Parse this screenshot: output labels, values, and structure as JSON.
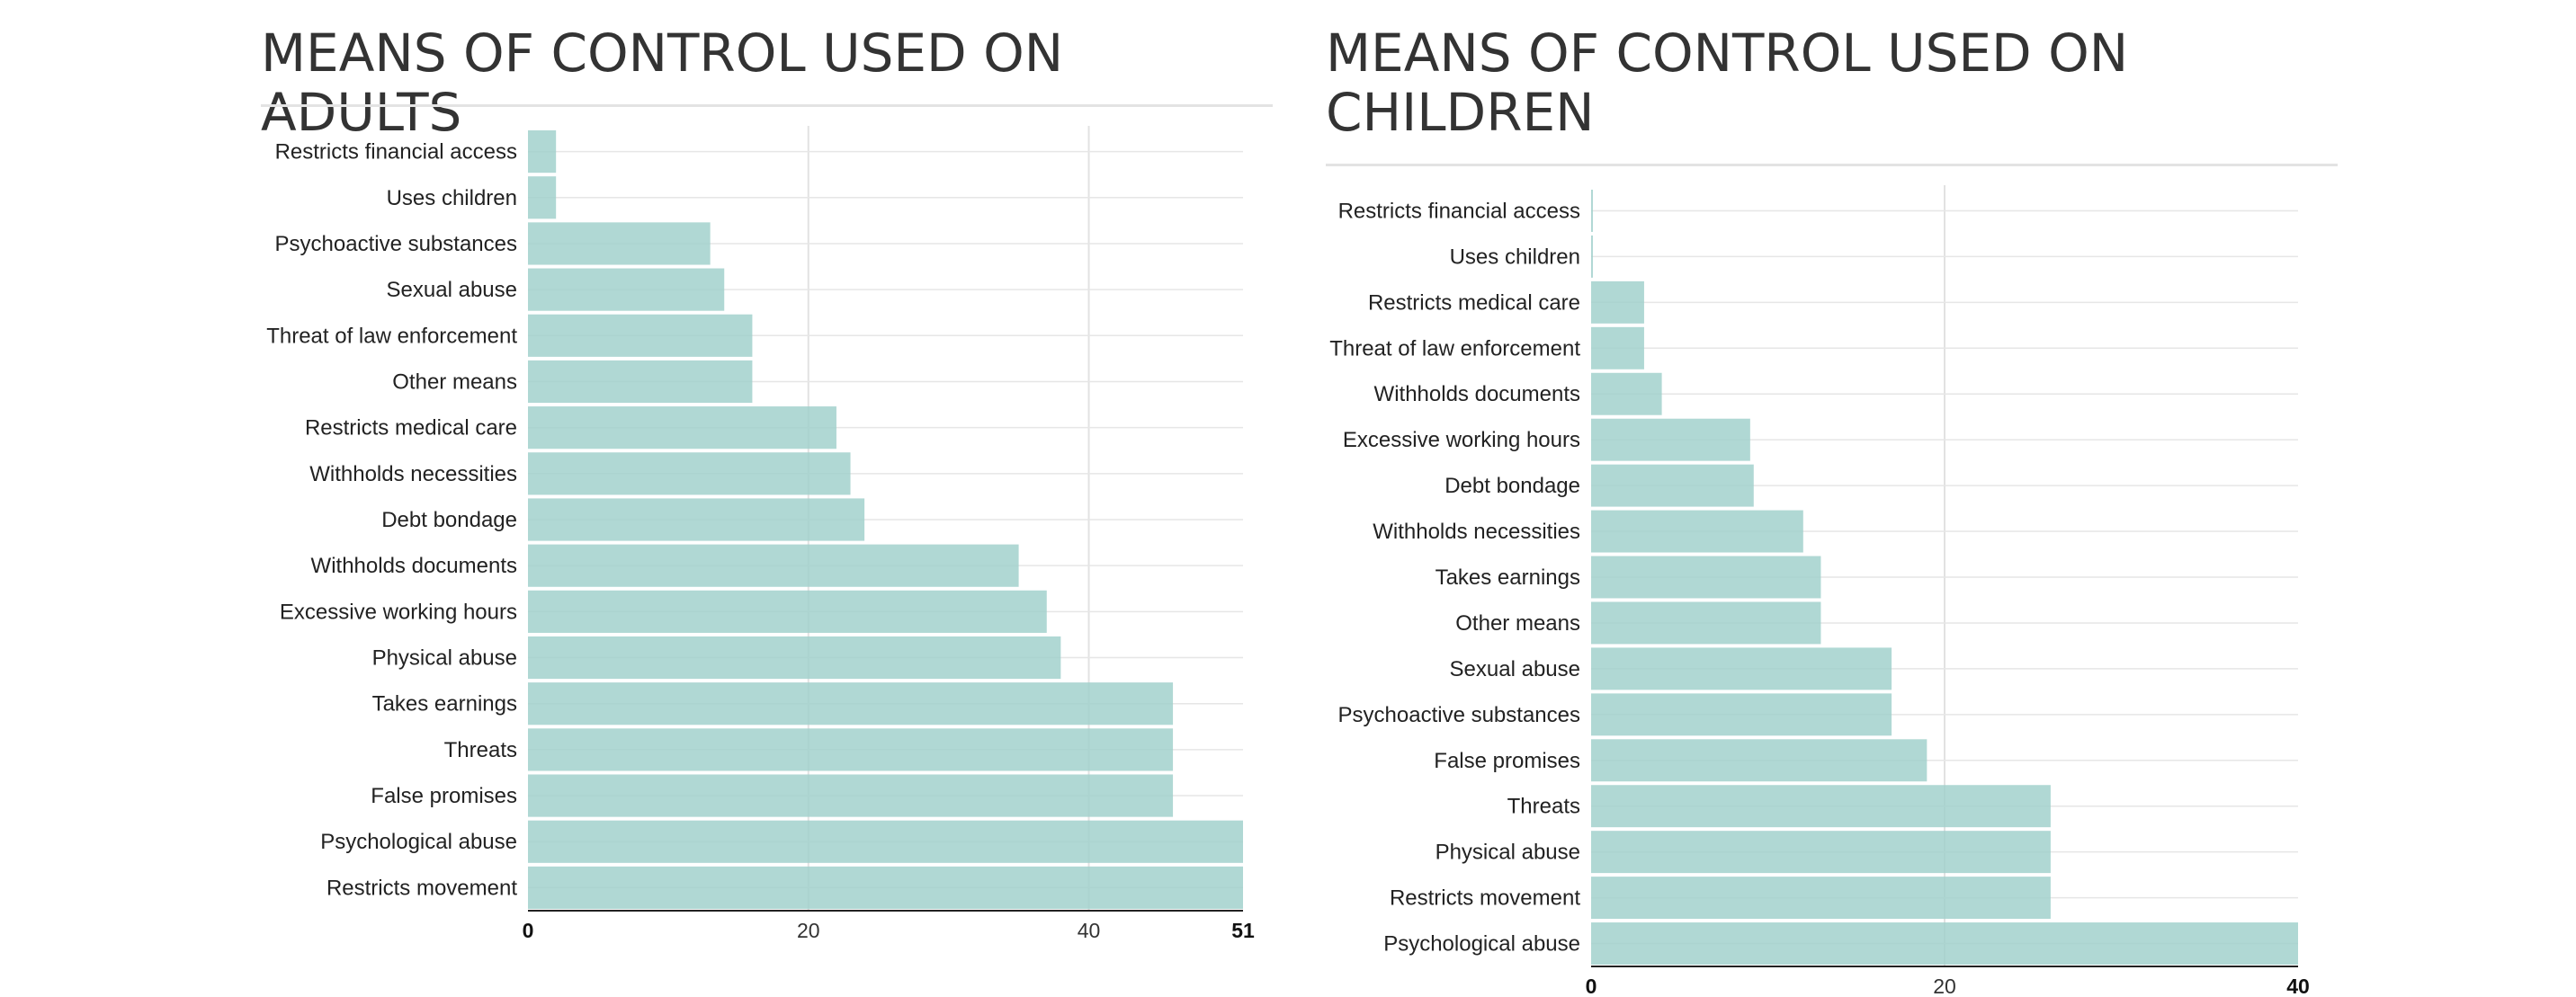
{
  "chart_data": [
    {
      "type": "bar",
      "orientation": "horizontal",
      "title": "MEANS OF CONTROL USED ON ADULTS",
      "categories": [
        "Restricts financial access",
        "Uses children",
        "Psychoactive substances",
        "Sexual abuse",
        "Threat of law enforcement",
        "Other means",
        "Restricts medical care",
        "Withholds necessities",
        "Debt bondage",
        "Withholds documents",
        "Excessive working hours",
        "Physical abuse",
        "Takes earnings",
        "Threats",
        "False promises",
        "Psychological abuse",
        "Restricts movement"
      ],
      "values": [
        2,
        2,
        13,
        14,
        16,
        16,
        22,
        23,
        24,
        35,
        37,
        38,
        46,
        46,
        46,
        51,
        51
      ],
      "xlim": [
        0,
        51
      ],
      "xticks": [
        "0",
        "20",
        "40",
        "51"
      ],
      "grid": true
    },
    {
      "type": "bar",
      "orientation": "horizontal",
      "title": "MEANS OF CONTROL USED ON CHILDREN",
      "categories": [
        "Restricts financial access",
        "Uses children",
        "Restricts medical care",
        "Threat of law enforcement",
        "Withholds documents",
        "Excessive working hours",
        "Debt bondage",
        "Withholds necessities",
        "Takes earnings",
        "Other means",
        "Sexual abuse",
        "Psychoactive substances",
        "False promises",
        "Threats",
        "Physical abuse",
        "Restricts movement",
        "Psychological abuse"
      ],
      "values": [
        0.1,
        0.1,
        3,
        3,
        4,
        9,
        9.2,
        12,
        13,
        13,
        17,
        17,
        19,
        26,
        26,
        26,
        40
      ],
      "xlim": [
        0,
        40
      ],
      "xticks": [
        "0",
        "20",
        "40"
      ],
      "grid": true
    }
  ]
}
